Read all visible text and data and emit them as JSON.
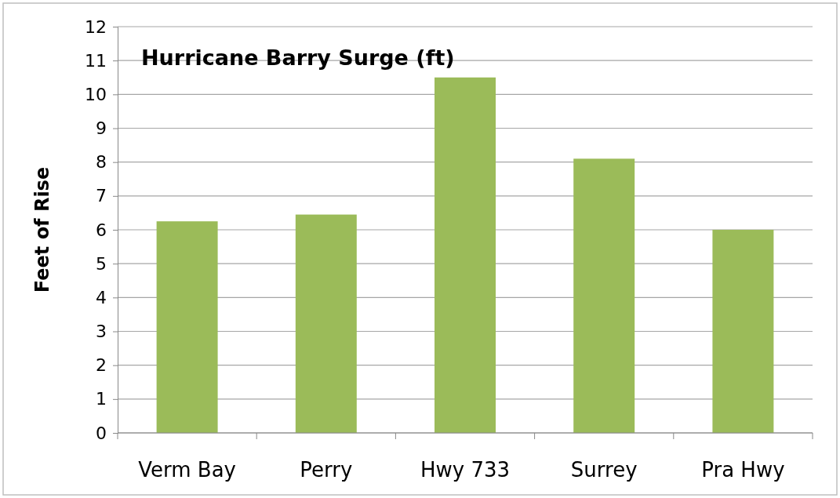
{
  "chart_data": {
    "type": "bar",
    "title": "Hurricane Barry Surge (ft)",
    "ylabel": "Feet of Rise",
    "categories": [
      "Verm Bay",
      "Perry",
      "Hwy 733",
      "Surrey",
      "Pra Hwy"
    ],
    "values": [
      6.25,
      6.45,
      10.5,
      8.1,
      6.0
    ],
    "color": "#9bbb59",
    "ylim": [
      0,
      12
    ],
    "yticks": [
      0,
      1,
      2,
      3,
      4,
      5,
      6,
      7,
      8,
      9,
      10,
      11,
      12
    ],
    "grid": "y"
  }
}
